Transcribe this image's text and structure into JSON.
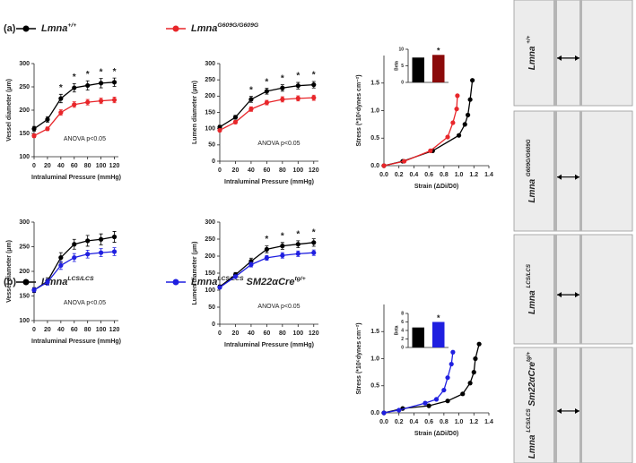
{
  "panels": [
    {
      "label": "(a)",
      "legend": [
        {
          "color": "#000000",
          "parts": [
            {
              "text": "Lmna"
            },
            {
              "text": "+/+",
              "sup": true
            }
          ]
        },
        {
          "color": "#e8262a",
          "parts": [
            {
              "text": "Lmna"
            },
            {
              "text": "G609G/G609G",
              "sup": true
            }
          ]
        }
      ]
    },
    {
      "label": "(b)",
      "legend": [
        {
          "color": "#000000",
          "parts": [
            {
              "text": "Lmna"
            },
            {
              "text": "LCS/LCS",
              "sup": true
            }
          ]
        },
        {
          "color": "#1f1fe0",
          "parts": [
            {
              "text": "Lmna"
            },
            {
              "text": "LCS/LCS",
              "sup": true
            },
            {
              "text": " SM22αCre"
            },
            {
              "text": "tg/+",
              "sup": true
            }
          ]
        }
      ]
    }
  ],
  "images": [
    {
      "color": "#000000",
      "parts": [
        {
          "text": "Lmna "
        },
        {
          "text": "+/+",
          "sup": true
        }
      ]
    },
    {
      "color": "#e8262a",
      "parts": [
        {
          "text": "Lmna "
        },
        {
          "text": "G609G/G609G",
          "sup": true
        }
      ]
    },
    {
      "color": "#000000",
      "parts": [
        {
          "text": "Lmna "
        },
        {
          "text": "LCS/LCS",
          "sup": true
        }
      ]
    },
    {
      "color": "#1f1fe0",
      "parts": [
        {
          "text": "Lmna "
        },
        {
          "text": "LCS/LCS",
          "sup": true
        },
        {
          "text": " Sm22αCre"
        },
        {
          "text": "tg/+",
          "sup": true
        }
      ]
    }
  ],
  "chart_data": [
    {
      "type": "line",
      "ylabel": "Vessel diameter (µm)",
      "xlabel": "Intraluminal Pressure (mmHg)",
      "note": "ANOVA p<0.05",
      "x": [
        0,
        20,
        40,
        60,
        80,
        100,
        120
      ],
      "xlim": [
        0,
        126
      ],
      "xticks": [
        0,
        20,
        40,
        60,
        80,
        100,
        120
      ],
      "ylim": [
        100,
        300
      ],
      "yticks": [
        100,
        150,
        200,
        250,
        300
      ],
      "series": [
        {
          "color": "#000000",
          "values": [
            160,
            180,
            225,
            248,
            253,
            258,
            260
          ],
          "errors": [
            5,
            6,
            9,
            9,
            10,
            10,
            9
          ]
        },
        {
          "color": "#e8262a",
          "values": [
            145,
            160,
            195,
            212,
            217,
            220,
            222
          ],
          "errors": [
            4,
            4,
            6,
            6,
            6,
            6,
            6
          ]
        }
      ],
      "annotations": [
        {
          "x": 40,
          "text": "*"
        },
        {
          "x": 60,
          "text": "*"
        },
        {
          "x": 80,
          "text": "*"
        },
        {
          "x": 100,
          "text": "*"
        },
        {
          "x": 120,
          "text": "*"
        }
      ]
    },
    {
      "type": "line",
      "ylabel": "Lumen diameter (µm)",
      "xlabel": "Intraluminal Pressure (mmHg)",
      "note": "ANOVA p<0.05",
      "x": [
        0,
        20,
        40,
        60,
        80,
        100,
        120
      ],
      "xlim": [
        0,
        126
      ],
      "xticks": [
        0,
        20,
        40,
        60,
        80,
        100,
        120
      ],
      "ylim": [
        0,
        300
      ],
      "yticks": [
        0,
        50,
        100,
        150,
        200,
        250,
        300
      ],
      "series": [
        {
          "color": "#000000",
          "values": [
            105,
            135,
            190,
            215,
            225,
            232,
            235
          ],
          "errors": [
            5,
            6,
            9,
            9,
            10,
            10,
            10
          ]
        },
        {
          "color": "#e8262a",
          "values": [
            95,
            120,
            160,
            180,
            190,
            193,
            195
          ],
          "errors": [
            4,
            5,
            7,
            7,
            8,
            8,
            8
          ]
        }
      ],
      "annotations": [
        {
          "x": 40,
          "text": "*"
        },
        {
          "x": 60,
          "text": "*"
        },
        {
          "x": 80,
          "text": "*"
        },
        {
          "x": 100,
          "text": "*"
        },
        {
          "x": 120,
          "text": "*"
        }
      ]
    },
    {
      "type": "scatterline",
      "ylabel": "Stress (*10⁶dynes cm⁻²)",
      "xlabel": "Strain (ΔDi/D0)",
      "xlim": [
        0,
        1.4
      ],
      "xticks": [
        {
          "value": 0,
          "label": "0.0"
        },
        0.2,
        0.4,
        0.6,
        0.8,
        {
          "value": 1,
          "label": "1.0"
        },
        1.2,
        1.4
      ],
      "ylim": [
        0,
        2
      ],
      "yticks": [
        {
          "value": 0,
          "label": "0.0"
        },
        0.5,
        {
          "value": 1,
          "label": "1.0"
        },
        1.5
      ],
      "series": [
        {
          "color": "#000000",
          "x": [
            0,
            0.25,
            0.65,
            1.0,
            1.08,
            1.12,
            1.15,
            1.18
          ],
          "values": [
            0,
            0.08,
            0.27,
            0.55,
            0.75,
            0.92,
            1.2,
            1.55
          ]
        },
        {
          "color": "#e8262a",
          "x": [
            0,
            0.27,
            0.62,
            0.85,
            0.92,
            0.97,
            0.98
          ],
          "values": [
            0,
            0.08,
            0.27,
            0.52,
            0.78,
            1.03,
            1.27
          ]
        }
      ]
    },
    {
      "type": "bar",
      "ylabel": "Beta",
      "categories": [
        null,
        null
      ],
      "ylim": [
        0,
        10
      ],
      "yticks": [
        0,
        5,
        10
      ],
      "values": [
        7.5,
        8.3
      ],
      "colors": [
        "#000000",
        "#8b0a0a"
      ],
      "annotations": [
        {
          "index": 1,
          "text": "*"
        }
      ]
    },
    {
      "type": "line",
      "ylabel": "Vessel diameter (µm)",
      "xlabel": "Intraluminal Pressure (mmHg)",
      "note": "ANOVA p<0.05",
      "x": [
        0,
        20,
        40,
        60,
        80,
        100,
        120
      ],
      "xlim": [
        0,
        126
      ],
      "xticks": [
        0,
        20,
        40,
        60,
        80,
        100,
        120
      ],
      "ylim": [
        100,
        300
      ],
      "yticks": [
        100,
        150,
        200,
        250,
        300
      ],
      "series": [
        {
          "color": "#000000",
          "values": [
            162,
            180,
            228,
            255,
            262,
            265,
            270
          ],
          "errors": [
            5,
            7,
            10,
            10,
            11,
            11,
            11
          ]
        },
        {
          "color": "#1f1fe0",
          "values": [
            162,
            178,
            212,
            228,
            235,
            238,
            240
          ],
          "errors": [
            4,
            6,
            8,
            8,
            8,
            8,
            8
          ]
        }
      ],
      "annotations": []
    },
    {
      "type": "line",
      "ylabel": "Lumen diameter (µm)",
      "xlabel": "Intraluminal Pressure (mmHg)",
      "note": "ANOVA p<0.05",
      "x": [
        0,
        20,
        40,
        60,
        80,
        100,
        120
      ],
      "xlim": [
        0,
        126
      ],
      "xticks": [
        0,
        20,
        40,
        60,
        80,
        100,
        120
      ],
      "ylim": [
        0,
        300
      ],
      "yticks": [
        0,
        50,
        100,
        150,
        200,
        250,
        300
      ],
      "series": [
        {
          "color": "#000000",
          "values": [
            110,
            145,
            185,
            220,
            230,
            235,
            240
          ],
          "errors": [
            5,
            7,
            9,
            10,
            10,
            10,
            11
          ]
        },
        {
          "color": "#1f1fe0",
          "values": [
            108,
            140,
            175,
            195,
            202,
            207,
            210
          ],
          "errors": [
            4,
            5,
            7,
            7,
            8,
            8,
            8
          ]
        }
      ],
      "annotations": [
        {
          "x": 60,
          "text": "*"
        },
        {
          "x": 80,
          "text": "*"
        },
        {
          "x": 100,
          "text": "*"
        },
        {
          "x": 120,
          "text": "*"
        }
      ]
    },
    {
      "type": "scatterline",
      "ylabel": "Stress (*10⁶dynes cm⁻²)",
      "xlabel": "Strain (ΔDi/D0)",
      "xlim": [
        0,
        1.4
      ],
      "xticks": [
        {
          "value": 0,
          "label": "0.0"
        },
        0.2,
        0.4,
        0.6,
        0.8,
        {
          "value": 1,
          "label": "1.0"
        },
        1.2,
        1.4
      ],
      "ylim": [
        0,
        2
      ],
      "yticks": [
        {
          "value": 0,
          "label": "0.0"
        },
        0.5,
        {
          "value": 1,
          "label": "1.0"
        },
        1.5
      ],
      "series": [
        {
          "color": "#000000",
          "x": [
            0,
            0.25,
            0.6,
            0.85,
            1.05,
            1.15,
            1.2,
            1.22,
            1.27
          ],
          "values": [
            0,
            0.08,
            0.13,
            0.22,
            0.35,
            0.55,
            0.75,
            1.0,
            1.27
          ]
        },
        {
          "color": "#1f1fe0",
          "x": [
            0,
            0.2,
            0.55,
            0.7,
            0.8,
            0.85,
            0.9,
            0.92
          ],
          "values": [
            0,
            0.05,
            0.18,
            0.25,
            0.42,
            0.65,
            0.9,
            1.12
          ]
        }
      ]
    },
    {
      "type": "bar",
      "ylabel": "Beta",
      "categories": [
        null,
        null
      ],
      "ylim": [
        0,
        8
      ],
      "yticks": [
        0,
        2,
        4,
        6,
        8
      ],
      "values": [
        4.7,
        6.0
      ],
      "colors": [
        "#000000",
        "#1f1fe0"
      ],
      "annotations": [
        {
          "index": 1,
          "text": "*"
        }
      ]
    }
  ]
}
